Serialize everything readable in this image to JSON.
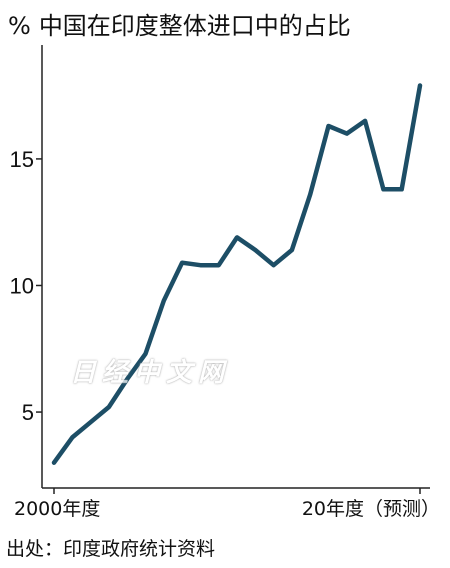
{
  "title": {
    "unit": "%",
    "text": "中国在印度整体进口中的占比"
  },
  "watermark": "日经中文网",
  "source": "出处：印度政府统计资料",
  "colors": {
    "line": "#1d4e66",
    "axis": "#222222"
  },
  "chart_data": {
    "type": "line",
    "title": "中国在印度整体进口中的占比",
    "ylabel": "%",
    "x": [
      "2000",
      "2001",
      "2002",
      "2003",
      "2004",
      "2005",
      "2006",
      "2007",
      "2008",
      "2009",
      "2010",
      "2011",
      "2012",
      "2013",
      "2014",
      "2015",
      "2016",
      "2017",
      "2018",
      "2019",
      "2020"
    ],
    "x_tick_labels": [
      {
        "index": 0,
        "label": "2000年度"
      },
      {
        "index": 20,
        "label": "20年度（预测）"
      }
    ],
    "yticks": [
      5,
      10,
      15
    ],
    "ylim": [
      2,
      19.5
    ],
    "series": [
      {
        "values": [
          3.0,
          4.0,
          4.6,
          5.2,
          6.3,
          7.3,
          9.4,
          10.9,
          10.8,
          10.8,
          11.9,
          11.4,
          10.8,
          11.4,
          13.6,
          16.3,
          16.0,
          16.5,
          13.8,
          13.8,
          17.9
        ]
      }
    ],
    "grid": false
  }
}
